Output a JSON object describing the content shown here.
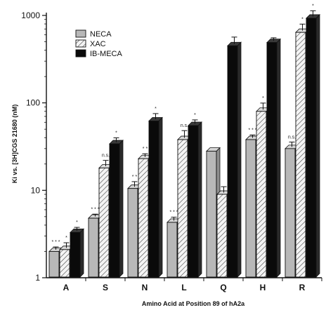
{
  "chart_data": {
    "type": "bar",
    "style": "3d-grouped-bar",
    "title": "",
    "xlabel": "Amino Acid at Position 89 of hA2a",
    "ylabel": "Ki vs. [3H]CGS 21680 (nM)",
    "yscale": "log",
    "ylim": [
      1,
      1000
    ],
    "yticks": [
      1,
      10,
      100,
      1000
    ],
    "categories": [
      "A",
      "S",
      "N",
      "L",
      "Q",
      "H",
      "R"
    ],
    "series": [
      {
        "name": "NECA",
        "fill": "#b8b8b8",
        "values": [
          2.0,
          4.8,
          10.5,
          4.3,
          28,
          38,
          30
        ],
        "errors": [
          0.15,
          0.3,
          1.5,
          0.4,
          0,
          3,
          4
        ],
        "sig": [
          "* * *",
          "* * *",
          "* *",
          "* * *",
          "",
          "* * *",
          "n.s."
        ]
      },
      {
        "name": "XAC",
        "fill": "hatched",
        "values": [
          2.1,
          18,
          23,
          38,
          9,
          80,
          640
        ],
        "errors": [
          0.3,
          3,
          2,
          8,
          1.5,
          15,
          120
        ],
        "sig": [
          "*",
          "n.s.",
          "* *",
          "n.s.",
          "",
          "*",
          "*"
        ]
      },
      {
        "name": "IB-MECA",
        "fill": "#0a0a0a",
        "values": [
          3.3,
          34,
          62,
          55,
          450,
          490,
          930
        ],
        "errors": [
          0.3,
          4,
          10,
          6,
          90,
          40,
          150
        ],
        "sig": [
          "*",
          "*",
          "*",
          "*",
          "",
          "",
          "*"
        ]
      }
    ],
    "legend": {
      "position": "top-left",
      "entries": [
        "NECA",
        "XAC",
        "IB-MECA"
      ]
    },
    "grid": false
  }
}
